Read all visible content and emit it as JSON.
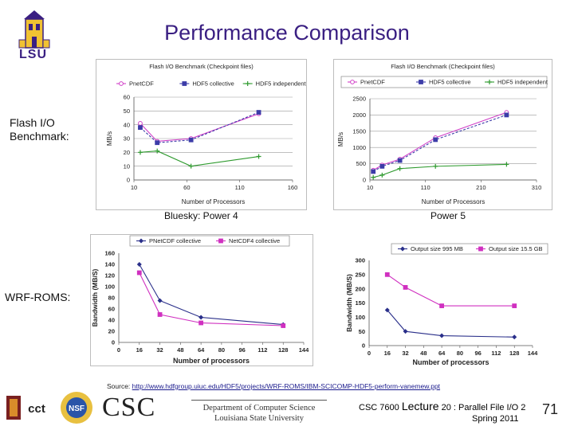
{
  "slide": {
    "title": "Performance Comparison",
    "lsu_label": "LSU",
    "row1_label_line1": "Flash I/O",
    "row1_label_line2": "Benchmark:",
    "row2_label": "WRF-ROMS:",
    "caption_left": "Bluesky: Power 4",
    "caption_right": "Power 5",
    "source_prefix": "Source: ",
    "source_url": "http://www.hdfgroup.uiuc.edu/HDF5/projects/WRF-ROMS/IBM-SCICOMP-HDF5-perform-vanemew.ppt",
    "footer_course": "CSC 7600",
    "footer_lecture": "Lecture",
    "footer_rest": "20 : Parallel File I/O 2",
    "footer_term": "Spring 2011",
    "page_number": "71",
    "cct_label": "cct",
    "nsf_label": "NSF",
    "csc_logo": "CSC",
    "dept_line1": "Department of Computer Science",
    "dept_line2": "Louisiana State University"
  },
  "colors": {
    "title": "#3a1f82",
    "pnetcdf": "#d040c8",
    "hdf5_collective": "#3c3ca8",
    "hdf5_independent": "#2e9a2e",
    "series_blue": "#2a2f8a",
    "series_magenta": "#d030c0"
  },
  "chart_data": [
    {
      "id": "flash-bluesky",
      "type": "line",
      "title": "Flash I/O Benchmark (Checkpoint files)",
      "xlabel": "Number of Processors",
      "ylabel": "MB/s",
      "xlim": [
        10,
        160
      ],
      "ylim": [
        0,
        60
      ],
      "xticks": [
        10,
        60,
        110,
        160
      ],
      "xtick_labels": [
        "10",
        "60",
        "110",
        "160"
      ],
      "yticks": [
        0,
        10,
        20,
        30,
        40,
        50,
        60
      ],
      "legend": [
        "PnetCDF",
        "HDF5 collective",
        "HDF5 independent"
      ],
      "series": [
        {
          "name": "PnetCDF",
          "color": "#d040c8",
          "marker": "circle",
          "x": [
            16,
            32,
            64,
            128
          ],
          "y": [
            41,
            28,
            30,
            48
          ]
        },
        {
          "name": "HDF5 collective",
          "color": "#3c3ca8",
          "marker": "square",
          "x": [
            16,
            32,
            64,
            128
          ],
          "y": [
            38,
            27,
            29,
            49
          ]
        },
        {
          "name": "HDF5 independent",
          "color": "#2e9a2e",
          "marker": "plus",
          "x": [
            16,
            32,
            64,
            128
          ],
          "y": [
            20,
            21,
            10,
            17
          ]
        }
      ]
    },
    {
      "id": "flash-power5",
      "type": "line",
      "title": "Flash I/O Benchmark (Checkpoint files)",
      "xlabel": "Number of Processors",
      "ylabel": "MB/s",
      "xlim": [
        10,
        310
      ],
      "ylim": [
        0,
        2500
      ],
      "xticks": [
        10,
        110,
        210,
        310
      ],
      "xtick_labels": [
        "10",
        "110",
        "210",
        "310"
      ],
      "yticks": [
        0,
        500,
        1000,
        1500,
        2000,
        2500
      ],
      "legend": [
        "PnetCDF",
        "HDF5 collective",
        "HDF5 independent"
      ],
      "series": [
        {
          "name": "PnetCDF",
          "color": "#d040c8",
          "marker": "circle",
          "x": [
            16,
            32,
            64,
            128,
            256
          ],
          "y": [
            300,
            460,
            640,
            1300,
            2080
          ]
        },
        {
          "name": "HDF5 collective",
          "color": "#3c3ca8",
          "marker": "square",
          "x": [
            16,
            32,
            64,
            128,
            256
          ],
          "y": [
            260,
            420,
            600,
            1240,
            2000
          ]
        },
        {
          "name": "HDF5 independent",
          "color": "#2e9a2e",
          "marker": "plus",
          "x": [
            16,
            32,
            64,
            128,
            256
          ],
          "y": [
            80,
            150,
            350,
            420,
            480
          ]
        }
      ]
    },
    {
      "id": "wrf-bluesky",
      "type": "line",
      "title": "",
      "xlabel": "Number of processors",
      "ylabel": "Bandwidth (MB/S)",
      "xlim": [
        0,
        144
      ],
      "ylim": [
        0,
        160
      ],
      "xticks": [
        0,
        16,
        32,
        48,
        64,
        80,
        96,
        112,
        128,
        144
      ],
      "xtick_labels": [
        "0",
        "16",
        "32",
        "48",
        "64",
        "80",
        "96",
        "112",
        "128",
        "144"
      ],
      "yticks": [
        0,
        20,
        40,
        60,
        80,
        100,
        120,
        140,
        160
      ],
      "legend": [
        "PNetCDF collective",
        "NetCDF4 collective"
      ],
      "series": [
        {
          "name": "PNetCDF collective",
          "color": "#2a2f8a",
          "marker": "diamond",
          "x": [
            16,
            32,
            64,
            128
          ],
          "y": [
            140,
            75,
            45,
            32
          ]
        },
        {
          "name": "NetCDF4 collective",
          "color": "#d030c0",
          "marker": "square",
          "x": [
            16,
            32,
            64,
            128
          ],
          "y": [
            125,
            50,
            35,
            30
          ]
        }
      ]
    },
    {
      "id": "wrf-power5",
      "type": "line",
      "title": "",
      "xlabel": "Number of processors",
      "ylabel": "Bandwidth (MB/S)",
      "xlim": [
        0,
        144
      ],
      "ylim": [
        0,
        300
      ],
      "xticks": [
        0,
        16,
        32,
        48,
        64,
        80,
        96,
        112,
        128,
        144
      ],
      "xtick_labels": [
        "0",
        "16",
        "32",
        "48",
        "64",
        "80",
        "96",
        "112",
        "128",
        "144"
      ],
      "yticks": [
        0,
        50,
        100,
        150,
        200,
        250,
        300
      ],
      "legend": [
        "Output size 995 MB",
        "Output size 15.5 GB"
      ],
      "series": [
        {
          "name": "Output size 995 MB",
          "color": "#2a2f8a",
          "marker": "diamond",
          "x": [
            16,
            32,
            64,
            128
          ],
          "y": [
            125,
            50,
            35,
            30
          ]
        },
        {
          "name": "Output size 15.5 GB",
          "color": "#d030c0",
          "marker": "square",
          "x": [
            16,
            32,
            64,
            128
          ],
          "y": [
            250,
            205,
            140,
            140
          ]
        }
      ]
    }
  ]
}
